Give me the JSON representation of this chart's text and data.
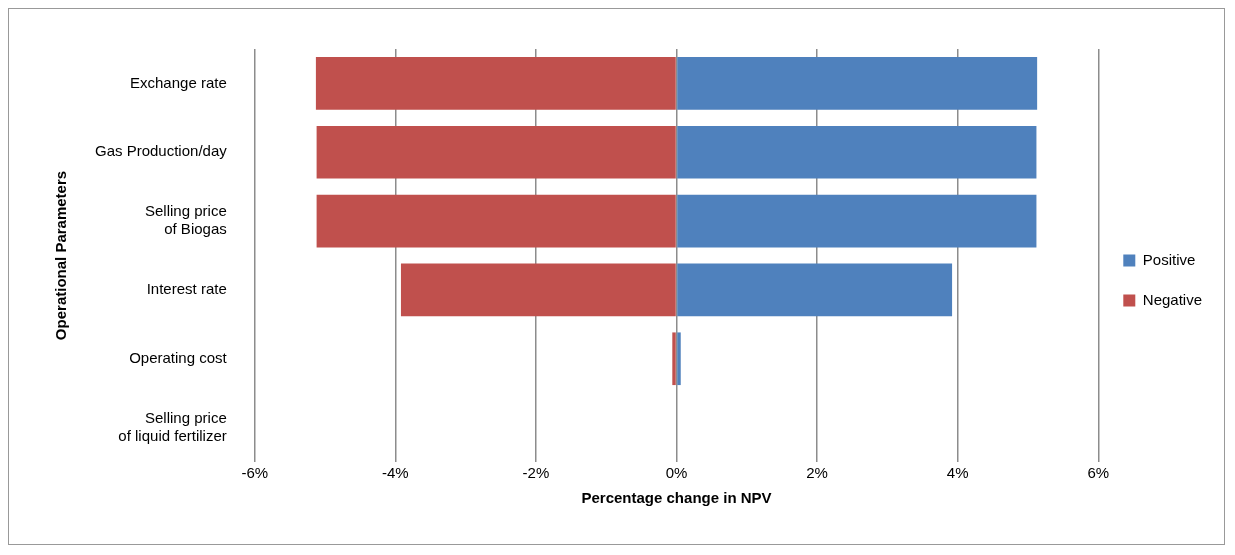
{
  "chart_data": {
    "type": "bar",
    "orientation": "horizontal",
    "stacked": true,
    "xlabel": "Percentage change in NPV",
    "ylabel": "Operational Parameters",
    "categories": [
      "Exchange rate",
      "Gas Production/day",
      "Selling price\nof Biogas",
      "Interest rate",
      "Operating cost",
      "Selling price\nof liquid fertilizer"
    ],
    "series": [
      {
        "name": "Positive",
        "color": "#4f81bd",
        "values": [
          5.13,
          5.12,
          5.12,
          3.92,
          0.06,
          null
        ]
      },
      {
        "name": "Negative",
        "color": "#c0504d",
        "values": [
          -5.13,
          -5.12,
          -5.12,
          -3.92,
          -0.06,
          null
        ]
      }
    ],
    "xlim": [
      -6,
      6
    ],
    "xticks": [
      {
        "value": -6,
        "label": "-6%"
      },
      {
        "value": -4,
        "label": "-4%"
      },
      {
        "value": -2,
        "label": "-2%"
      },
      {
        "value": 0,
        "label": "0%"
      },
      {
        "value": 2,
        "label": "2%"
      },
      {
        "value": 4,
        "label": "4%"
      },
      {
        "value": 6,
        "label": "6%"
      }
    ],
    "grid": "x",
    "legend": "right"
  }
}
